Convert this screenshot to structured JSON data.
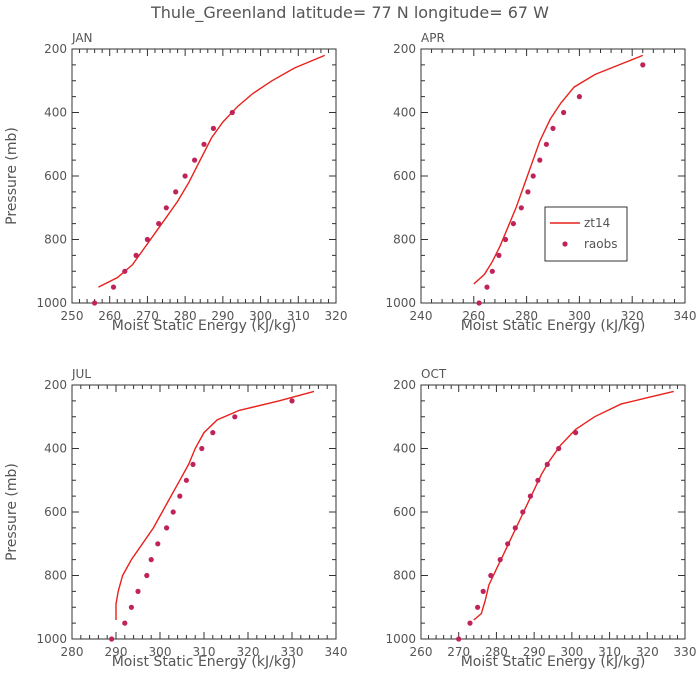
{
  "title": "Thule_Greenland  latitude= 77 N longitude= 67 W",
  "legend": {
    "model_label": "zt14",
    "obs_label": "raobs"
  },
  "colors": {
    "model": "#e8211c",
    "obs": "#c0235a",
    "text": "#555555",
    "axis": "#333333"
  },
  "chart_data": [
    {
      "type": "line",
      "panel": "JAN",
      "xlabel": "Moist Static Energy (kJ/kg)",
      "ylabel": "Pressure (mb)",
      "xlim": [
        250,
        320
      ],
      "ylim": [
        1000,
        200
      ],
      "xticks": [
        250,
        260,
        270,
        280,
        290,
        300,
        310,
        320
      ],
      "yticks": [
        200,
        400,
        600,
        800,
        1000
      ],
      "model_line": [
        [
          257,
          950
        ],
        [
          262,
          920
        ],
        [
          266,
          880
        ],
        [
          269,
          830
        ],
        [
          272,
          780
        ],
        [
          275,
          730
        ],
        [
          278,
          680
        ],
        [
          281,
          620
        ],
        [
          284,
          550
        ],
        [
          287,
          480
        ],
        [
          290,
          430
        ],
        [
          294,
          380
        ],
        [
          298,
          340
        ],
        [
          303,
          300
        ],
        [
          309,
          260
        ],
        [
          317,
          220
        ]
      ],
      "obs_points": [
        [
          256,
          1000
        ],
        [
          261,
          950
        ],
        [
          264,
          900
        ],
        [
          267,
          850
        ],
        [
          270,
          800
        ],
        [
          273,
          750
        ],
        [
          275,
          700
        ],
        [
          277.5,
          650
        ],
        [
          280,
          600
        ],
        [
          282.5,
          550
        ],
        [
          285,
          500
        ],
        [
          287.5,
          450
        ],
        [
          292.5,
          400
        ]
      ]
    },
    {
      "type": "line",
      "panel": "APR",
      "xlabel": "Moist Static Energy (kJ/kg)",
      "ylabel": "",
      "xlim": [
        240,
        340
      ],
      "ylim": [
        1000,
        200
      ],
      "xticks": [
        240,
        260,
        280,
        300,
        320,
        340
      ],
      "yticks": [
        200,
        400,
        600,
        800,
        1000
      ],
      "model_line": [
        [
          260,
          940
        ],
        [
          264,
          910
        ],
        [
          267,
          870
        ],
        [
          270,
          820
        ],
        [
          273,
          760
        ],
        [
          276,
          700
        ],
        [
          279,
          630
        ],
        [
          282,
          560
        ],
        [
          285,
          490
        ],
        [
          289,
          420
        ],
        [
          293,
          370
        ],
        [
          298,
          320
        ],
        [
          306,
          280
        ],
        [
          315,
          250
        ],
        [
          324,
          220
        ]
      ],
      "obs_points": [
        [
          262,
          1000
        ],
        [
          265,
          950
        ],
        [
          267,
          900
        ],
        [
          269.5,
          850
        ],
        [
          272,
          800
        ],
        [
          275,
          750
        ],
        [
          278,
          700
        ],
        [
          280.5,
          650
        ],
        [
          282.5,
          600
        ],
        [
          285,
          550
        ],
        [
          287.5,
          500
        ],
        [
          290,
          450
        ],
        [
          294,
          400
        ],
        [
          300,
          350
        ],
        [
          324,
          250
        ]
      ]
    },
    {
      "type": "line",
      "panel": "JUL",
      "xlabel": "Moist Static Energy (kJ/kg)",
      "ylabel": "Pressure (mb)",
      "xlim": [
        280,
        340
      ],
      "ylim": [
        1000,
        200
      ],
      "xticks": [
        280,
        290,
        300,
        310,
        320,
        330,
        340
      ],
      "yticks": [
        200,
        400,
        600,
        800,
        1000
      ],
      "model_line": [
        [
          290,
          940
        ],
        [
          290,
          890
        ],
        [
          290.5,
          850
        ],
        [
          291.5,
          800
        ],
        [
          293.5,
          750
        ],
        [
          296,
          700
        ],
        [
          298.5,
          650
        ],
        [
          300.5,
          600
        ],
        [
          302.5,
          550
        ],
        [
          304.5,
          500
        ],
        [
          306.5,
          450
        ],
        [
          308,
          400
        ],
        [
          310,
          350
        ],
        [
          313,
          310
        ],
        [
          318,
          280
        ],
        [
          327,
          250
        ],
        [
          335,
          220
        ]
      ],
      "obs_points": [
        [
          289,
          1000
        ],
        [
          292,
          950
        ],
        [
          293.5,
          900
        ],
        [
          295,
          850
        ],
        [
          297,
          800
        ],
        [
          298,
          750
        ],
        [
          299.5,
          700
        ],
        [
          301.5,
          650
        ],
        [
          303,
          600
        ],
        [
          304.5,
          550
        ],
        [
          306,
          500
        ],
        [
          307.5,
          450
        ],
        [
          309.5,
          400
        ],
        [
          312,
          350
        ],
        [
          317,
          300
        ],
        [
          330,
          250
        ]
      ]
    },
    {
      "type": "line",
      "panel": "OCT",
      "xlabel": "Moist Static Energy (kJ/kg)",
      "ylabel": "",
      "xlim": [
        260,
        330
      ],
      "ylim": [
        1000,
        200
      ],
      "xticks": [
        260,
        270,
        280,
        290,
        300,
        310,
        320,
        330
      ],
      "yticks": [
        200,
        400,
        600,
        800,
        1000
      ],
      "model_line": [
        [
          274,
          940
        ],
        [
          276,
          920
        ],
        [
          277,
          880
        ],
        [
          278,
          830
        ],
        [
          280,
          780
        ],
        [
          282,
          730
        ],
        [
          284,
          680
        ],
        [
          286,
          630
        ],
        [
          288,
          580
        ],
        [
          290,
          530
        ],
        [
          292,
          480
        ],
        [
          294,
          440
        ],
        [
          297,
          390
        ],
        [
          301,
          340
        ],
        [
          306,
          300
        ],
        [
          313,
          260
        ],
        [
          320,
          240
        ],
        [
          327,
          220
        ]
      ],
      "obs_points": [
        [
          270,
          1000
        ],
        [
          273,
          950
        ],
        [
          275,
          900
        ],
        [
          276.5,
          850
        ],
        [
          278.5,
          800
        ],
        [
          281,
          750
        ],
        [
          283,
          700
        ],
        [
          285,
          650
        ],
        [
          287,
          600
        ],
        [
          289,
          550
        ],
        [
          291,
          500
        ],
        [
          293.5,
          450
        ],
        [
          296.5,
          400
        ],
        [
          301,
          350
        ]
      ]
    }
  ]
}
